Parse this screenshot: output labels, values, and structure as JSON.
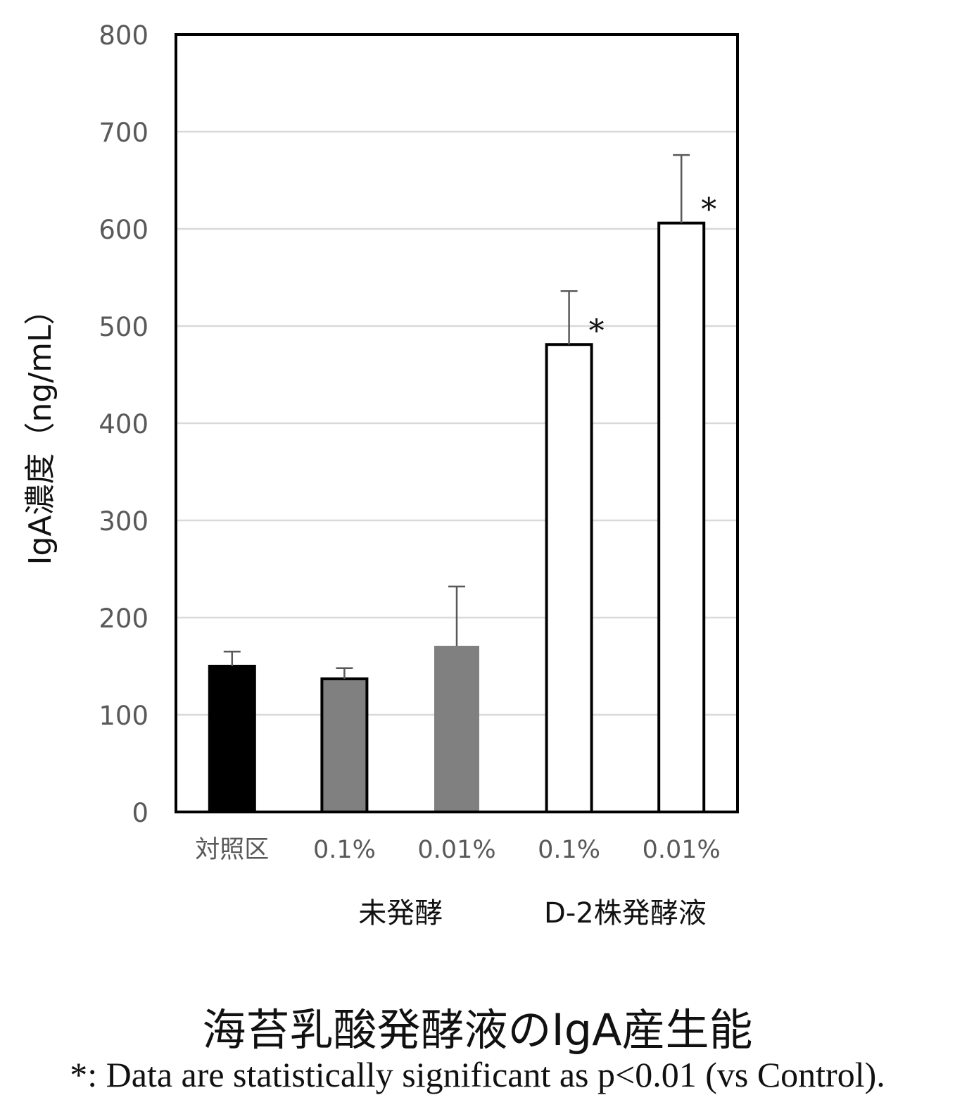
{
  "chart_data": {
    "type": "bar",
    "title": "海苔乳酸発酵液のIgA産生能",
    "footnote": "*: Data are statistically significant as p<0.01 (vs Control).",
    "ylabel": "IgA濃度（ng/mL）",
    "xlabel": "",
    "ylim": [
      0,
      800
    ],
    "yticks": [
      0,
      100,
      200,
      300,
      400,
      500,
      600,
      700,
      800
    ],
    "grid": true,
    "categories": [
      "対照区",
      "0.1%",
      "0.01%",
      "0.1%",
      "0.01%"
    ],
    "groups": [
      {
        "label": "未発酵",
        "members": [
          1,
          2
        ]
      },
      {
        "label": "D-2株発酵液",
        "members": [
          3,
          4
        ]
      }
    ],
    "values": [
      150,
      137,
      171,
      481,
      606
    ],
    "errors": [
      15,
      11,
      61,
      55,
      70
    ],
    "significance": [
      "",
      "",
      "",
      "*",
      "*"
    ],
    "bar_colors": [
      "#000000",
      "#808080",
      "#808080",
      "#ffffff",
      "#ffffff"
    ]
  }
}
